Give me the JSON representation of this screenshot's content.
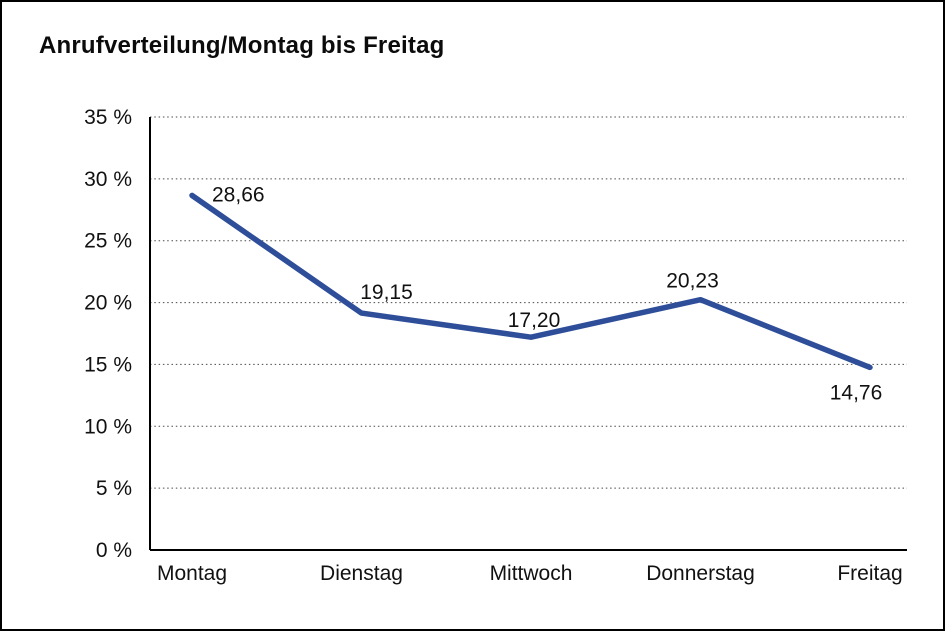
{
  "page": {
    "title": "Anrufverteilung/Montag bis Freitag"
  },
  "chart_data": {
    "type": "line",
    "title": "Anrufverteilung/Montag bis Freitag",
    "categories": [
      "Montag",
      "Dienstag",
      "Mittwoch",
      "Donnerstag",
      "Freitag"
    ],
    "values": [
      28.66,
      19.15,
      17.2,
      20.23,
      14.76
    ],
    "value_labels": [
      "28,66",
      "19,15",
      "17,20",
      "20,23",
      "14,76"
    ],
    "xlabel": "",
    "ylabel": "",
    "ylim": [
      0,
      35
    ],
    "y_tick_step": 5,
    "y_ticks": [
      {
        "value": 0,
        "label": "0 %"
      },
      {
        "value": 5,
        "label": "5 %"
      },
      {
        "value": 10,
        "label": "10 %"
      },
      {
        "value": 15,
        "label": "15 %"
      },
      {
        "value": 20,
        "label": "20 %"
      },
      {
        "value": 25,
        "label": "25 %"
      },
      {
        "value": 30,
        "label": "30 %"
      },
      {
        "value": 35,
        "label": "35 %"
      }
    ],
    "grid": "dotted-horizontal",
    "legend": "none",
    "line_color": "#2E4E99",
    "text_color": "#111111",
    "background_color": "#ffffff"
  }
}
